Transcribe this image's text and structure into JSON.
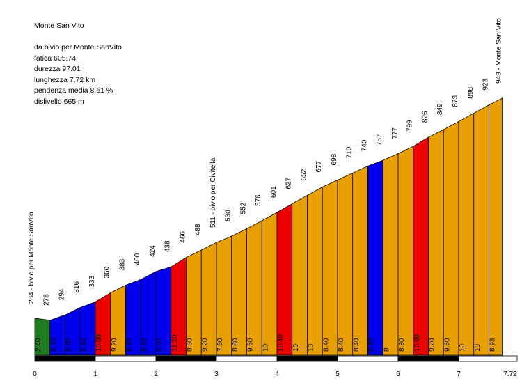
{
  "chart_data": {
    "type": "area",
    "title": "Monte San Vito",
    "subtitle_lines": [
      "da bivio per Monte SanVito",
      "fatica 605.74",
      "durezza 97.01",
      "lunghezza 7.72 km",
      "pendenza media 8.61 %",
      "dislivello 665 m"
    ],
    "xlabel": "",
    "ylabel": "",
    "x_ticks": [
      "0",
      "1",
      "2",
      "3",
      "4",
      "5",
      "6",
      "7",
      "7.72"
    ],
    "xlim": [
      0,
      7.72
    ],
    "ylim": [
      220,
      960
    ],
    "distance_km": [
      0,
      0.25,
      0.5,
      0.75,
      1,
      1.25,
      1.5,
      1.75,
      2,
      2.25,
      2.5,
      2.75,
      3,
      3.25,
      3.5,
      3.75,
      4,
      4.25,
      4.5,
      4.75,
      5,
      5.25,
      5.5,
      5.75,
      6,
      6.25,
      6.5,
      6.75,
      7,
      7.25,
      7.5,
      7.72
    ],
    "elevation_m": [
      284,
      278,
      294,
      316,
      333,
      360,
      383,
      400,
      424,
      438,
      466,
      488,
      511,
      530,
      552,
      576,
      601,
      627,
      652,
      677,
      698,
      719,
      740,
      757,
      777,
      799,
      826,
      849,
      873,
      898,
      923,
      943
    ],
    "elevation_labels": [
      "284 - bivio per Monte SanVito",
      "278",
      "294",
      "316",
      "333",
      "360",
      "383",
      "400",
      "424",
      "438",
      "466",
      "488",
      "511 - bivio per Civitella",
      "530",
      "552",
      "576",
      "601",
      "627",
      "652",
      "677",
      "698",
      "719",
      "740",
      "757",
      "777",
      "799",
      "826",
      "849",
      "873",
      "898",
      "923",
      "943 - Monte San Vito"
    ],
    "gradients": [
      "2.40",
      "6.40",
      "8.80",
      "6.80",
      "10.80",
      "9.20",
      "6.80",
      "9.60",
      "5.60",
      "11.20",
      "8.80",
      "9.20",
      "7.60",
      "8.80",
      "9.60",
      "10",
      "10.40",
      "10",
      "10",
      "8.40",
      "8.40",
      "8.40",
      "6.80",
      "8",
      "8.80",
      "10.80",
      "9.20",
      "9.60",
      "10",
      "10",
      "8.93"
    ],
    "segment_colors": [
      "#1e7c1e",
      "#0000ee",
      "#0000ee",
      "#0000ee",
      "#ee0000",
      "#e8a000",
      "#0000ee",
      "#0000ee",
      "#0000ee",
      "#ee0000",
      "#e8a000",
      "#e8a000",
      "#e8a000",
      "#e8a000",
      "#e8a000",
      "#e8a000",
      "#ee0000",
      "#e8a000",
      "#e8a000",
      "#e8a000",
      "#e8a000",
      "#e8a000",
      "#0000ee",
      "#e8a000",
      "#e8a000",
      "#ee0000",
      "#e8a000",
      "#e8a000",
      "#e8a000",
      "#e8a000",
      "#e8a000"
    ],
    "grid": false,
    "legend": "none"
  },
  "colors": {
    "green": "#1e7c1e",
    "blue": "#0000ee",
    "red": "#ee0000",
    "orange": "#e8a000",
    "scale_dark": "#000000",
    "scale_light": "#ffffff"
  }
}
